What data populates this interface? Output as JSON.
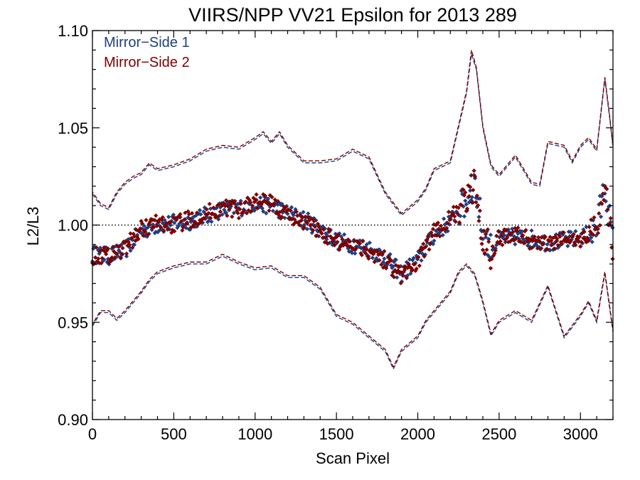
{
  "chart_data": {
    "type": "scatter",
    "title": "VIIRS/NPP VV21 Epsilon for 2013 289",
    "xlabel": "Scan Pixel",
    "ylabel": "L2/L3",
    "xlim": [
      0,
      3200
    ],
    "ylim": [
      0.9,
      1.1
    ],
    "x_ticks": [
      0,
      500,
      1000,
      1500,
      2000,
      2500,
      3000
    ],
    "y_ticks": [
      0.9,
      0.95,
      1.0,
      1.05,
      1.1
    ],
    "x_tick_labels": [
      "0",
      "500",
      "1000",
      "1500",
      "2000",
      "2500",
      "3000"
    ],
    "y_tick_labels": [
      "0.90",
      "0.95",
      "1.00",
      "1.05",
      "1.10"
    ],
    "legend_position": "top-left",
    "reference_line": {
      "y": 1.0,
      "style": "dotted"
    },
    "colors": {
      "mirror_side_1": "#1f3f7f",
      "mirror_side_2": "#800000"
    },
    "series": [
      {
        "name": "Mirror−Side 1",
        "color": "#1f3f7f",
        "mean_points": [
          [
            0,
            0.985
          ],
          [
            100,
            0.984
          ],
          [
            200,
            0.987
          ],
          [
            300,
            0.997
          ],
          [
            400,
            1.0
          ],
          [
            500,
            1.001
          ],
          [
            600,
            1.002
          ],
          [
            700,
            1.005
          ],
          [
            800,
            1.008
          ],
          [
            900,
            1.009
          ],
          [
            1000,
            1.011
          ],
          [
            1100,
            1.01
          ],
          [
            1200,
            1.006
          ],
          [
            1300,
            1.003
          ],
          [
            1400,
            0.998
          ],
          [
            1500,
            0.992
          ],
          [
            1600,
            0.99
          ],
          [
            1700,
            0.988
          ],
          [
            1800,
            0.983
          ],
          [
            1900,
            0.975
          ],
          [
            2000,
            0.982
          ],
          [
            2100,
            0.995
          ],
          [
            2200,
            1.002
          ],
          [
            2300,
            1.012
          ],
          [
            2350,
            1.022
          ],
          [
            2400,
            0.996
          ],
          [
            2450,
            0.987
          ],
          [
            2500,
            0.993
          ],
          [
            2600,
            0.994
          ],
          [
            2700,
            0.993
          ],
          [
            2800,
            0.991
          ],
          [
            2900,
            0.992
          ],
          [
            3000,
            0.993
          ],
          [
            3100,
            0.998
          ],
          [
            3150,
            1.02
          ],
          [
            3200,
            0.99
          ]
        ],
        "upper_band": [
          [
            0,
            1.016
          ],
          [
            50,
            1.01
          ],
          [
            100,
            1.008
          ],
          [
            150,
            1.016
          ],
          [
            200,
            1.021
          ],
          [
            250,
            1.024
          ],
          [
            300,
            1.026
          ],
          [
            350,
            1.031
          ],
          [
            400,
            1.028
          ],
          [
            500,
            1.03
          ],
          [
            600,
            1.033
          ],
          [
            700,
            1.038
          ],
          [
            800,
            1.04
          ],
          [
            900,
            1.039
          ],
          [
            1000,
            1.044
          ],
          [
            1050,
            1.047
          ],
          [
            1100,
            1.042
          ],
          [
            1150,
            1.047
          ],
          [
            1200,
            1.04
          ],
          [
            1300,
            1.032
          ],
          [
            1400,
            1.032
          ],
          [
            1500,
            1.033
          ],
          [
            1600,
            1.038
          ],
          [
            1700,
            1.034
          ],
          [
            1800,
            1.016
          ],
          [
            1900,
            1.005
          ],
          [
            2000,
            1.012
          ],
          [
            2050,
            1.018
          ],
          [
            2100,
            1.028
          ],
          [
            2200,
            1.032
          ],
          [
            2250,
            1.05
          ],
          [
            2300,
            1.068
          ],
          [
            2330,
            1.088
          ],
          [
            2360,
            1.08
          ],
          [
            2400,
            1.05
          ],
          [
            2450,
            1.03
          ],
          [
            2500,
            1.025
          ],
          [
            2600,
            1.035
          ],
          [
            2700,
            1.021
          ],
          [
            2750,
            1.02
          ],
          [
            2800,
            1.042
          ],
          [
            2900,
            1.04
          ],
          [
            2950,
            1.032
          ],
          [
            3000,
            1.04
          ],
          [
            3050,
            1.044
          ],
          [
            3100,
            1.038
          ],
          [
            3150,
            1.075
          ],
          [
            3180,
            1.055
          ],
          [
            3200,
            1.04
          ]
        ],
        "lower_band": [
          [
            0,
            0.948
          ],
          [
            50,
            0.955
          ],
          [
            100,
            0.955
          ],
          [
            150,
            0.951
          ],
          [
            200,
            0.955
          ],
          [
            250,
            0.96
          ],
          [
            300,
            0.965
          ],
          [
            350,
            0.971
          ],
          [
            400,
            0.975
          ],
          [
            500,
            0.978
          ],
          [
            600,
            0.98
          ],
          [
            700,
            0.98
          ],
          [
            800,
            0.984
          ],
          [
            900,
            0.98
          ],
          [
            1000,
            0.977
          ],
          [
            1100,
            0.978
          ],
          [
            1200,
            0.973
          ],
          [
            1300,
            0.973
          ],
          [
            1400,
            0.967
          ],
          [
            1500,
            0.953
          ],
          [
            1600,
            0.949
          ],
          [
            1700,
            0.942
          ],
          [
            1800,
            0.935
          ],
          [
            1850,
            0.926
          ],
          [
            1900,
            0.935
          ],
          [
            2000,
            0.942
          ],
          [
            2050,
            0.95
          ],
          [
            2100,
            0.955
          ],
          [
            2200,
            0.965
          ],
          [
            2250,
            0.975
          ],
          [
            2300,
            0.979
          ],
          [
            2350,
            0.974
          ],
          [
            2400,
            0.96
          ],
          [
            2450,
            0.943
          ],
          [
            2500,
            0.95
          ],
          [
            2600,
            0.955
          ],
          [
            2700,
            0.95
          ],
          [
            2800,
            0.968
          ],
          [
            2900,
            0.942
          ],
          [
            3000,
            0.953
          ],
          [
            3050,
            0.96
          ],
          [
            3100,
            0.95
          ],
          [
            3150,
            0.975
          ],
          [
            3200,
            0.945
          ]
        ]
      },
      {
        "name": "Mirror−Side 2",
        "color": "#800000",
        "mean_points": [
          [
            0,
            0.984
          ],
          [
            100,
            0.985
          ],
          [
            200,
            0.988
          ],
          [
            300,
            0.998
          ],
          [
            400,
            1.001
          ],
          [
            500,
            1.0
          ],
          [
            600,
            1.003
          ],
          [
            700,
            1.006
          ],
          [
            800,
            1.009
          ],
          [
            900,
            1.008
          ],
          [
            1000,
            1.012
          ],
          [
            1100,
            1.011
          ],
          [
            1200,
            1.005
          ],
          [
            1300,
            1.002
          ],
          [
            1400,
            0.997
          ],
          [
            1500,
            0.991
          ],
          [
            1600,
            0.991
          ],
          [
            1700,
            0.987
          ],
          [
            1800,
            0.982
          ],
          [
            1900,
            0.974
          ],
          [
            2000,
            0.981
          ],
          [
            2100,
            0.996
          ],
          [
            2200,
            1.003
          ],
          [
            2300,
            1.013
          ],
          [
            2350,
            1.021
          ],
          [
            2400,
            0.995
          ],
          [
            2450,
            0.986
          ],
          [
            2500,
            0.994
          ],
          [
            2600,
            0.995
          ],
          [
            2700,
            0.992
          ],
          [
            2800,
            0.99
          ],
          [
            2900,
            0.993
          ],
          [
            3000,
            0.992
          ],
          [
            3100,
            0.999
          ],
          [
            3150,
            1.019
          ],
          [
            3200,
            0.989
          ]
        ],
        "upper_band": [
          [
            0,
            1.017
          ],
          [
            50,
            1.011
          ],
          [
            100,
            1.009
          ],
          [
            150,
            1.017
          ],
          [
            200,
            1.022
          ],
          [
            250,
            1.025
          ],
          [
            300,
            1.027
          ],
          [
            350,
            1.032
          ],
          [
            400,
            1.029
          ],
          [
            500,
            1.031
          ],
          [
            600,
            1.034
          ],
          [
            700,
            1.039
          ],
          [
            800,
            1.041
          ],
          [
            900,
            1.04
          ],
          [
            1000,
            1.045
          ],
          [
            1050,
            1.048
          ],
          [
            1100,
            1.043
          ],
          [
            1150,
            1.048
          ],
          [
            1200,
            1.041
          ],
          [
            1300,
            1.033
          ],
          [
            1400,
            1.033
          ],
          [
            1500,
            1.034
          ],
          [
            1600,
            1.039
          ],
          [
            1700,
            1.035
          ],
          [
            1800,
            1.017
          ],
          [
            1900,
            1.006
          ],
          [
            2000,
            1.013
          ],
          [
            2050,
            1.019
          ],
          [
            2100,
            1.029
          ],
          [
            2200,
            1.033
          ],
          [
            2250,
            1.051
          ],
          [
            2300,
            1.069
          ],
          [
            2330,
            1.09
          ],
          [
            2360,
            1.081
          ],
          [
            2400,
            1.051
          ],
          [
            2450,
            1.031
          ],
          [
            2500,
            1.026
          ],
          [
            2600,
            1.036
          ],
          [
            2700,
            1.022
          ],
          [
            2750,
            1.021
          ],
          [
            2800,
            1.043
          ],
          [
            2900,
            1.041
          ],
          [
            2950,
            1.033
          ],
          [
            3000,
            1.041
          ],
          [
            3050,
            1.045
          ],
          [
            3100,
            1.039
          ],
          [
            3150,
            1.076
          ],
          [
            3180,
            1.056
          ],
          [
            3200,
            1.041
          ]
        ],
        "lower_band": [
          [
            0,
            0.949
          ],
          [
            50,
            0.956
          ],
          [
            100,
            0.956
          ],
          [
            150,
            0.952
          ],
          [
            200,
            0.956
          ],
          [
            250,
            0.961
          ],
          [
            300,
            0.966
          ],
          [
            350,
            0.972
          ],
          [
            400,
            0.976
          ],
          [
            500,
            0.979
          ],
          [
            600,
            0.981
          ],
          [
            700,
            0.981
          ],
          [
            800,
            0.985
          ],
          [
            900,
            0.981
          ],
          [
            1000,
            0.978
          ],
          [
            1100,
            0.979
          ],
          [
            1200,
            0.974
          ],
          [
            1300,
            0.974
          ],
          [
            1400,
            0.968
          ],
          [
            1500,
            0.954
          ],
          [
            1600,
            0.95
          ],
          [
            1700,
            0.943
          ],
          [
            1800,
            0.936
          ],
          [
            1850,
            0.927
          ],
          [
            1900,
            0.936
          ],
          [
            2000,
            0.943
          ],
          [
            2050,
            0.951
          ],
          [
            2100,
            0.956
          ],
          [
            2200,
            0.966
          ],
          [
            2250,
            0.976
          ],
          [
            2300,
            0.98
          ],
          [
            2350,
            0.975
          ],
          [
            2400,
            0.961
          ],
          [
            2450,
            0.944
          ],
          [
            2500,
            0.951
          ],
          [
            2600,
            0.956
          ],
          [
            2700,
            0.951
          ],
          [
            2800,
            0.969
          ],
          [
            2900,
            0.943
          ],
          [
            3000,
            0.954
          ],
          [
            3050,
            0.961
          ],
          [
            3100,
            0.951
          ],
          [
            3150,
            0.976
          ],
          [
            3200,
            0.946
          ]
        ]
      }
    ]
  }
}
